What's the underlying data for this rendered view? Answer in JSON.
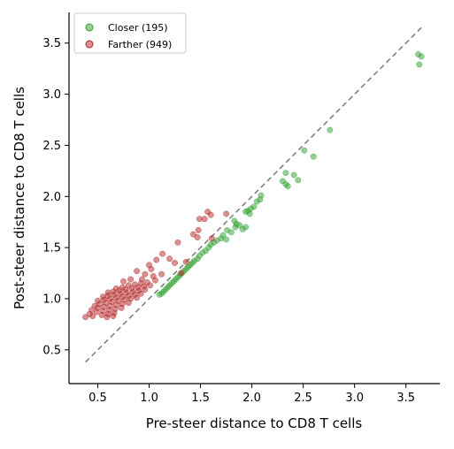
{
  "chart_data": {
    "type": "scatter",
    "title": "",
    "xlabel": "Pre-steer distance to CD8 T cells",
    "ylabel": "Post-steer distance to CD8 T cells",
    "xlim": [
      0.22,
      3.83
    ],
    "ylim": [
      0.17,
      3.8
    ],
    "x_ticks": [
      0.5,
      1.0,
      1.5,
      2.0,
      2.5,
      3.0,
      3.5
    ],
    "x_tick_labels": [
      "0.5",
      "1.0",
      "1.5",
      "2.0",
      "2.5",
      "3.0",
      "3.5"
    ],
    "y_ticks": [
      0.5,
      1.0,
      1.5,
      2.0,
      2.5,
      3.0,
      3.5
    ],
    "y_tick_labels": [
      "0.5",
      "1.0",
      "1.5",
      "2.0",
      "2.5",
      "3.0",
      "3.5"
    ],
    "grid": false,
    "legend_position": "top-left",
    "reference_line": {
      "style": "dashed",
      "color": "#808080",
      "x": [
        0.38,
        3.65
      ],
      "y": [
        0.38,
        3.65
      ]
    },
    "series": [
      {
        "name": "Closer (195)",
        "color": "#2ca02c",
        "points": [
          [
            3.62,
            3.39
          ],
          [
            3.65,
            3.37
          ],
          [
            3.63,
            3.29
          ],
          [
            2.76,
            2.65
          ],
          [
            2.51,
            2.45
          ],
          [
            2.6,
            2.39
          ],
          [
            2.33,
            2.23
          ],
          [
            2.41,
            2.21
          ],
          [
            2.45,
            2.16
          ],
          [
            2.3,
            2.15
          ],
          [
            2.33,
            2.12
          ],
          [
            2.35,
            2.1
          ],
          [
            2.09,
            2.01
          ],
          [
            2.08,
            1.97
          ],
          [
            2.05,
            1.95
          ],
          [
            2.02,
            1.9
          ],
          [
            1.99,
            1.88
          ],
          [
            1.96,
            1.86
          ],
          [
            1.94,
            1.85
          ],
          [
            1.98,
            1.83
          ],
          [
            1.83,
            1.76
          ],
          [
            1.85,
            1.73
          ],
          [
            1.88,
            1.72
          ],
          [
            1.84,
            1.7
          ],
          [
            1.91,
            1.68
          ],
          [
            1.76,
            1.67
          ],
          [
            1.94,
            1.7
          ],
          [
            1.8,
            1.65
          ],
          [
            1.72,
            1.62
          ],
          [
            1.75,
            1.58
          ],
          [
            1.7,
            1.59
          ],
          [
            1.66,
            1.57
          ],
          [
            1.63,
            1.55
          ],
          [
            1.6,
            1.53
          ],
          [
            1.58,
            1.5
          ],
          [
            1.55,
            1.47
          ],
          [
            1.52,
            1.45
          ],
          [
            1.49,
            1.42
          ],
          [
            1.47,
            1.39
          ],
          [
            1.44,
            1.37
          ],
          [
            1.42,
            1.35
          ],
          [
            1.4,
            1.33
          ],
          [
            1.38,
            1.31
          ],
          [
            1.36,
            1.29
          ],
          [
            1.34,
            1.27
          ],
          [
            1.32,
            1.25
          ],
          [
            1.3,
            1.23
          ],
          [
            1.28,
            1.21
          ],
          [
            1.26,
            1.19
          ],
          [
            1.24,
            1.17
          ],
          [
            1.22,
            1.15
          ],
          [
            1.2,
            1.13
          ],
          [
            1.18,
            1.11
          ],
          [
            1.16,
            1.09
          ],
          [
            1.14,
            1.07
          ],
          [
            1.12,
            1.05
          ],
          [
            1.1,
            1.04
          ]
        ]
      },
      {
        "name": "Farther (949)",
        "color": "#b22222",
        "points": [
          [
            1.57,
            1.85
          ],
          [
            1.6,
            1.82
          ],
          [
            1.75,
            1.83
          ],
          [
            1.54,
            1.78
          ],
          [
            1.49,
            1.78
          ],
          [
            1.48,
            1.67
          ],
          [
            1.43,
            1.63
          ],
          [
            1.47,
            1.6
          ],
          [
            1.61,
            1.59
          ],
          [
            1.28,
            1.55
          ],
          [
            1.13,
            1.44
          ],
          [
            1.2,
            1.39
          ],
          [
            1.07,
            1.38
          ],
          [
            1.25,
            1.35
          ],
          [
            1.36,
            1.36
          ],
          [
            1.0,
            1.33
          ],
          [
            0.88,
            1.27
          ],
          [
            0.96,
            1.24
          ],
          [
            1.02,
            1.29
          ],
          [
            1.31,
            1.25
          ],
          [
            0.75,
            1.17
          ],
          [
            0.82,
            1.19
          ],
          [
            0.93,
            1.19
          ],
          [
            1.04,
            1.22
          ],
          [
            1.12,
            1.24
          ],
          [
            0.68,
            1.1
          ],
          [
            0.74,
            1.11
          ],
          [
            0.8,
            1.13
          ],
          [
            0.86,
            1.14
          ],
          [
            0.92,
            1.15
          ],
          [
            0.98,
            1.16
          ],
          [
            1.06,
            1.18
          ],
          [
            0.6,
            1.06
          ],
          [
            0.65,
            1.07
          ],
          [
            0.71,
            1.08
          ],
          [
            0.77,
            1.09
          ],
          [
            0.83,
            1.1
          ],
          [
            0.89,
            1.11
          ],
          [
            0.95,
            1.12
          ],
          [
            1.01,
            1.13
          ],
          [
            0.55,
            1.02
          ],
          [
            0.6,
            1.03
          ],
          [
            0.66,
            1.04
          ],
          [
            0.72,
            1.05
          ],
          [
            0.78,
            1.06
          ],
          [
            0.84,
            1.07
          ],
          [
            0.9,
            1.08
          ],
          [
            0.96,
            1.09
          ],
          [
            0.5,
            0.98
          ],
          [
            0.56,
            0.99
          ],
          [
            0.62,
            1.0
          ],
          [
            0.68,
            1.01
          ],
          [
            0.74,
            1.02
          ],
          [
            0.8,
            1.03
          ],
          [
            0.86,
            1.04
          ],
          [
            0.92,
            1.05
          ],
          [
            0.47,
            0.93
          ],
          [
            0.52,
            0.95
          ],
          [
            0.58,
            0.96
          ],
          [
            0.64,
            0.97
          ],
          [
            0.7,
            0.98
          ],
          [
            0.76,
            0.99
          ],
          [
            0.82,
            1.0
          ],
          [
            0.88,
            1.01
          ],
          [
            0.44,
            0.89
          ],
          [
            0.5,
            0.91
          ],
          [
            0.56,
            0.92
          ],
          [
            0.62,
            0.93
          ],
          [
            0.68,
            0.94
          ],
          [
            0.74,
            0.95
          ],
          [
            0.8,
            0.96
          ],
          [
            0.49,
            0.87
          ],
          [
            0.55,
            0.88
          ],
          [
            0.61,
            0.89
          ],
          [
            0.67,
            0.9
          ],
          [
            0.73,
            0.91
          ],
          [
            0.42,
            0.85
          ],
          [
            0.54,
            0.84
          ],
          [
            0.6,
            0.85
          ],
          [
            0.66,
            0.86
          ],
          [
            0.38,
            0.82
          ],
          [
            0.45,
            0.83
          ],
          [
            0.59,
            0.82
          ],
          [
            0.65,
            0.83
          ]
        ]
      }
    ]
  }
}
